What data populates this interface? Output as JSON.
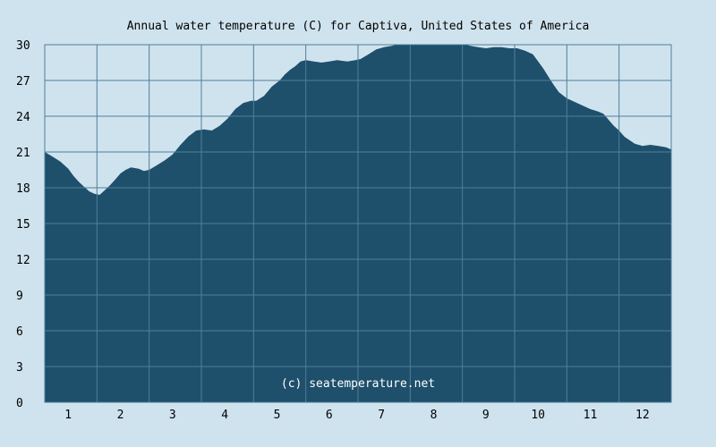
{
  "chart_data": {
    "type": "area",
    "title": "Annual water temperature (C) for Captiva, United States of America",
    "watermark": "(c) seatemperature.net",
    "xlabel": "",
    "ylabel": "",
    "x_ticks": [
      "1",
      "2",
      "3",
      "4",
      "5",
      "6",
      "7",
      "8",
      "9",
      "10",
      "11",
      "12"
    ],
    "y_ticks": [
      "0",
      "3",
      "6",
      "9",
      "12",
      "15",
      "18",
      "21",
      "24",
      "27",
      "30"
    ],
    "xlim": [
      0.5,
      12.5
    ],
    "ylim": [
      0,
      30
    ],
    "grid": true,
    "colors": {
      "background": "#cfe3ee",
      "fill": "#1e4f6b",
      "grid": "#4f7f9b"
    },
    "x": [
      0.5,
      0.65,
      0.8,
      0.95,
      1.05,
      1.15,
      1.25,
      1.35,
      1.45,
      1.55,
      1.65,
      1.75,
      1.85,
      1.95,
      2.05,
      2.15,
      2.3,
      2.4,
      2.5,
      2.65,
      2.8,
      2.95,
      3.1,
      3.25,
      3.4,
      3.55,
      3.7,
      3.85,
      4.0,
      4.15,
      4.3,
      4.45,
      4.55,
      4.7,
      4.85,
      5.0,
      5.1,
      5.2,
      5.3,
      5.4,
      5.5,
      5.65,
      5.8,
      5.95,
      6.1,
      6.3,
      6.45,
      6.55,
      6.7,
      6.85,
      7.0,
      7.15,
      7.3,
      7.45,
      7.6,
      7.75,
      7.9,
      8.05,
      8.2,
      8.35,
      8.5,
      8.65,
      8.8,
      8.95,
      9.1,
      9.25,
      9.4,
      9.55,
      9.7,
      9.85,
      9.95,
      10.05,
      10.15,
      10.25,
      10.35,
      10.5,
      10.65,
      10.8,
      10.95,
      11.1,
      11.2,
      11.3,
      11.4,
      11.5,
      11.6,
      11.7,
      11.8,
      11.95,
      12.1,
      12.25,
      12.4,
      12.5
    ],
    "values": [
      21.0,
      20.6,
      20.2,
      19.6,
      19.0,
      18.5,
      18.1,
      17.7,
      17.5,
      17.4,
      17.8,
      18.2,
      18.7,
      19.2,
      19.5,
      19.7,
      19.6,
      19.4,
      19.5,
      19.9,
      20.3,
      20.8,
      21.6,
      22.3,
      22.8,
      22.9,
      22.8,
      23.2,
      23.8,
      24.6,
      25.1,
      25.3,
      25.3,
      25.7,
      26.5,
      27.0,
      27.5,
      27.9,
      28.2,
      28.6,
      28.7,
      28.6,
      28.5,
      28.6,
      28.7,
      28.6,
      28.7,
      28.8,
      29.2,
      29.6,
      29.8,
      29.9,
      30.1,
      30.3,
      30.5,
      30.5,
      30.3,
      30.4,
      30.4,
      30.3,
      30.1,
      29.9,
      29.8,
      29.7,
      29.8,
      29.8,
      29.7,
      29.7,
      29.5,
      29.2,
      28.6,
      28.0,
      27.3,
      26.6,
      26.0,
      25.5,
      25.2,
      24.9,
      24.6,
      24.4,
      24.2,
      23.7,
      23.2,
      22.8,
      22.3,
      22.0,
      21.7,
      21.5,
      21.6,
      21.5,
      21.4,
      21.2
    ]
  }
}
